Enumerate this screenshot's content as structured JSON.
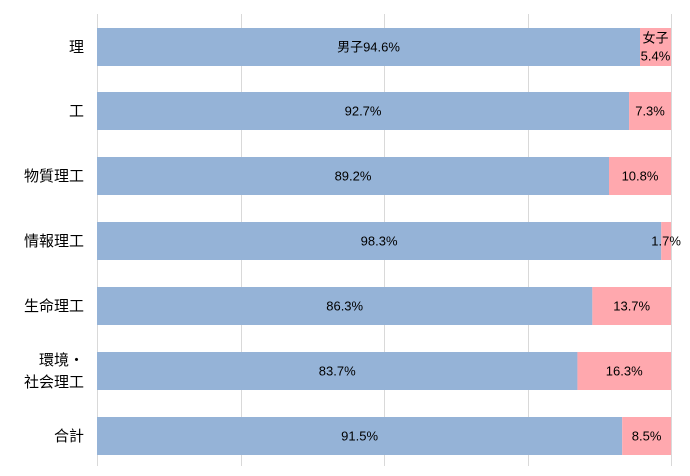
{
  "chart_data": {
    "type": "bar",
    "orientation": "horizontal",
    "stacked": true,
    "percent": true,
    "categories": [
      "理",
      "工",
      "物質理工",
      "情報理工",
      "生命理工",
      "環境・社会理工",
      "合計"
    ],
    "category_lines": [
      [
        "理"
      ],
      [
        "工"
      ],
      [
        "物質理工"
      ],
      [
        "情報理工"
      ],
      [
        "生命理工"
      ],
      [
        "環境・",
        "社会理工"
      ],
      [
        "合計"
      ]
    ],
    "series": [
      {
        "name": "男子",
        "color": "#95b3d7",
        "values": [
          94.6,
          92.7,
          89.2,
          98.3,
          86.3,
          83.7,
          91.5
        ]
      },
      {
        "name": "女子",
        "color": "#ffa8ae",
        "values": [
          5.4,
          7.3,
          10.8,
          1.7,
          13.7,
          16.3,
          8.5
        ]
      }
    ],
    "labels": {
      "male": [
        "男子94.6%",
        "92.7%",
        "89.2%",
        "98.3%",
        "86.3%",
        "83.7%",
        "91.5%"
      ],
      "female": [
        [
          "女子",
          "5.4%"
        ],
        [
          "7.3%"
        ],
        [
          "10.8%"
        ],
        [
          "1.7%"
        ],
        [
          "13.7%"
        ],
        [
          "16.3%"
        ],
        [
          "8.5%"
        ]
      ]
    },
    "xlim": [
      0,
      100
    ],
    "grid": true,
    "legend": "none"
  }
}
